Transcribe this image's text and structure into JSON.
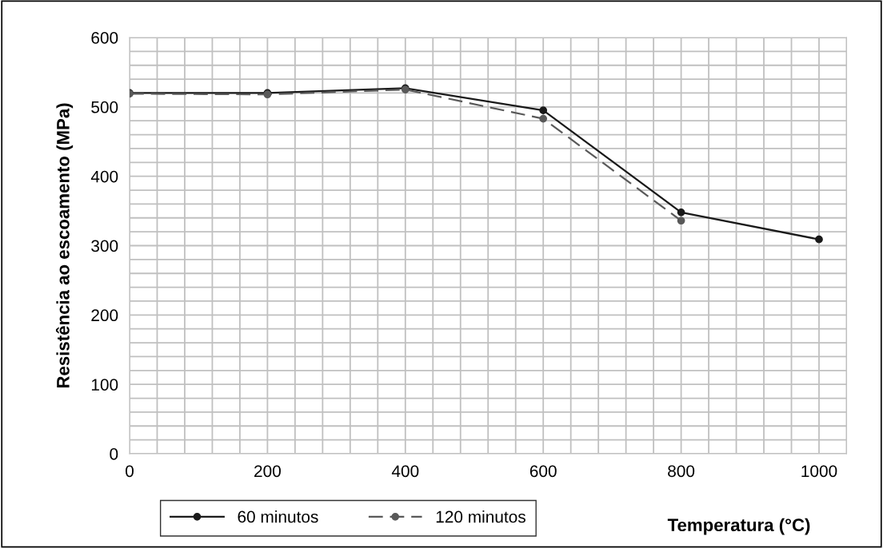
{
  "chart_data": {
    "type": "line",
    "xlabel": "Temperatura (°C)",
    "ylabel": "Resistência ao escoamento (MPa)",
    "xlim": [
      0,
      1040
    ],
    "ylim": [
      0,
      600
    ],
    "xticks": [
      0,
      {
        "value": 40,
        "label": null
      },
      {
        "value": 80,
        "label": null
      },
      {
        "value": 120,
        "label": null
      },
      {
        "value": 160,
        "label": null
      },
      200,
      {
        "value": 240,
        "label": null
      },
      {
        "value": 280,
        "label": null
      },
      {
        "value": 320,
        "label": null
      },
      {
        "value": 360,
        "label": null
      },
      400,
      {
        "value": 440,
        "label": null
      },
      {
        "value": 480,
        "label": null
      },
      {
        "value": 520,
        "label": null
      },
      {
        "value": 560,
        "label": null
      },
      600,
      {
        "value": 640,
        "label": null
      },
      {
        "value": 680,
        "label": null
      },
      {
        "value": 720,
        "label": null
      },
      {
        "value": 760,
        "label": null
      },
      800,
      {
        "value": 840,
        "label": null
      },
      {
        "value": 880,
        "label": null
      },
      {
        "value": 920,
        "label": null
      },
      {
        "value": 960,
        "label": null
      },
      1000,
      {
        "value": 1040,
        "label": null
      }
    ],
    "yticks": [
      0,
      {
        "value": 20,
        "label": null
      },
      {
        "value": 40,
        "label": null
      },
      {
        "value": 60,
        "label": null
      },
      {
        "value": 80,
        "label": null
      },
      100,
      {
        "value": 120,
        "label": null
      },
      {
        "value": 140,
        "label": null
      },
      {
        "value": 160,
        "label": null
      },
      {
        "value": 180,
        "label": null
      },
      200,
      {
        "value": 220,
        "label": null
      },
      {
        "value": 240,
        "label": null
      },
      {
        "value": 260,
        "label": null
      },
      {
        "value": 280,
        "label": null
      },
      300,
      {
        "value": 320,
        "label": null
      },
      {
        "value": 340,
        "label": null
      },
      {
        "value": 360,
        "label": null
      },
      {
        "value": 380,
        "label": null
      },
      400,
      {
        "value": 420,
        "label": null
      },
      {
        "value": 440,
        "label": null
      },
      {
        "value": 460,
        "label": null
      },
      {
        "value": 480,
        "label": null
      },
      500,
      {
        "value": 520,
        "label": null
      },
      {
        "value": 540,
        "label": null
      },
      {
        "value": 560,
        "label": null
      },
      {
        "value": 580,
        "label": null
      },
      600
    ],
    "grid": true,
    "legend": "bottom",
    "marker": "circle",
    "series": [
      {
        "name": "60 minutos",
        "color": "#1a1a1a",
        "line_style": "solid",
        "x": [
          0,
          200,
          400,
          600,
          800,
          1000
        ],
        "values": [
          520,
          520,
          527,
          495,
          348,
          309
        ]
      },
      {
        "name": "120 minutos",
        "color": "#595959",
        "line_style": "dashed",
        "x": [
          0,
          200,
          400,
          600,
          800
        ],
        "values": [
          519,
          518,
          525,
          483,
          336
        ]
      }
    ]
  }
}
